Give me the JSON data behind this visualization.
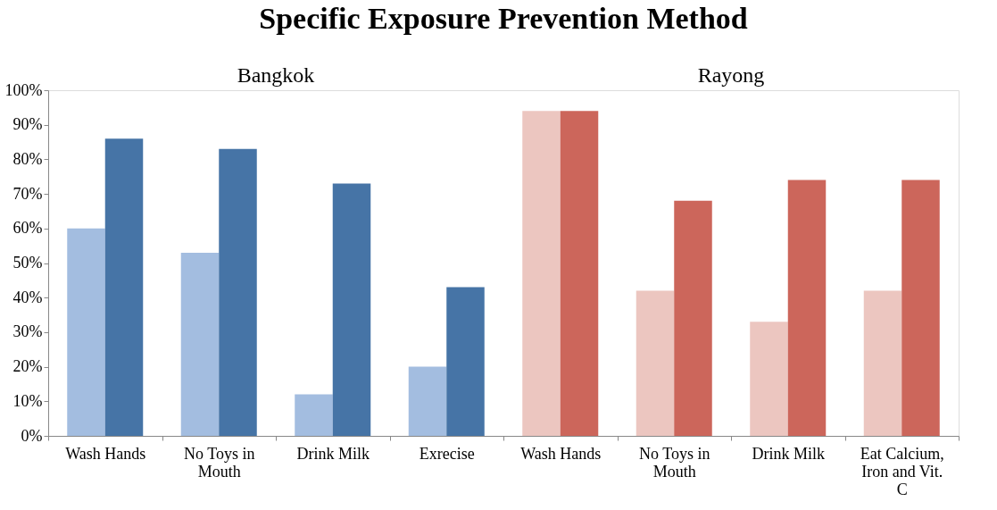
{
  "chart_data": {
    "type": "bar",
    "title": "Specific Exposure Prevention Method",
    "annotations": [
      "Bangkok",
      "Rayong"
    ],
    "categories": [
      "Wash Hands",
      "No Toys in Mouth",
      "Drink Milk",
      "Exrecise",
      "Wash Hands",
      "No Toys in Mouth",
      "Drink Milk",
      "Eat Calcium, Iron and Vit. C"
    ],
    "series": [
      {
        "colors": [
          "#a3bde0",
          "#a3bde0",
          "#a3bde0",
          "#a3bde0",
          "#ecc6c0",
          "#ecc6c0",
          "#ecc6c0",
          "#ecc6c0"
        ],
        "values": [
          60,
          53,
          12,
          20,
          94,
          42,
          33,
          42
        ]
      },
      {
        "colors": [
          "#4674a6",
          "#4674a6",
          "#4674a6",
          "#4674a6",
          "#cc665b",
          "#cc665b",
          "#cc665b",
          "#cc665b"
        ],
        "values": [
          86,
          83,
          73,
          43,
          94,
          68,
          74,
          74
        ]
      }
    ],
    "ylim": [
      0,
      100
    ],
    "yticks": [
      {
        "value": 0,
        "label": "0%"
      },
      {
        "value": 10,
        "label": "10%"
      },
      {
        "value": 20,
        "label": "20%"
      },
      {
        "value": 30,
        "label": "30%"
      },
      {
        "value": 40,
        "label": "40%"
      },
      {
        "value": 50,
        "label": "50%"
      },
      {
        "value": 60,
        "label": "60%"
      },
      {
        "value": 70,
        "label": "70%"
      },
      {
        "value": 80,
        "label": "80%"
      },
      {
        "value": 90,
        "label": "90%"
      },
      {
        "value": 100,
        "label": "100%"
      }
    ],
    "grid": false
  }
}
